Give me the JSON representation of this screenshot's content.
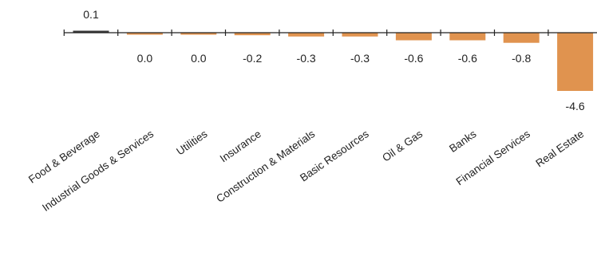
{
  "chart_data": {
    "type": "bar",
    "title": "",
    "xlabel": "",
    "ylabel": "",
    "categories": [
      "Food & Beverage",
      "Industrial Goods & Services",
      "Utilities",
      "Insurance",
      "Construction & Materials",
      "Basic Resources",
      "Oil & Gas",
      "Banks",
      "Financial Services",
      "Real Estate"
    ],
    "values": [
      0.1,
      0.0,
      0.0,
      -0.2,
      -0.3,
      -0.3,
      -0.6,
      -0.6,
      -0.8,
      -4.6
    ],
    "value_labels": [
      "0.1",
      "0.0",
      "0.0",
      "-0.2",
      "-0.3",
      "-0.3",
      "-0.6",
      "-0.6",
      "-0.8",
      "-4.6"
    ],
    "ylim": [
      -4.6,
      0.1
    ],
    "grid": false,
    "legend": "none",
    "colors": {
      "negative_bar": "#E0934F",
      "positive_bar": "#3A3A3A",
      "axis": "#222222"
    }
  }
}
